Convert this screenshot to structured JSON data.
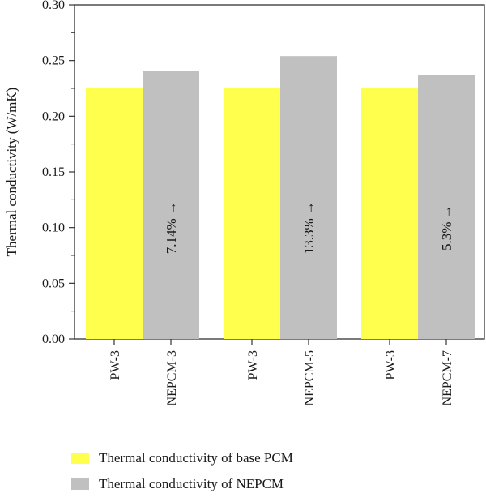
{
  "chart_data": {
    "type": "bar",
    "title": "",
    "xlabel": "",
    "ylabel": "Thermal conductivity (W/mK)",
    "ylim": [
      0,
      0.3
    ],
    "yticks": [
      "0.00",
      "0.05",
      "0.10",
      "0.15",
      "0.20",
      "0.25",
      "0.30"
    ],
    "grid": false,
    "legend_position": "bottom",
    "colors": {
      "base": "#ffff4d",
      "nepcm": "#c0c0c0",
      "axis": "#333333"
    },
    "groups": [
      {
        "bars": [
          {
            "category": "PW-3",
            "series": "Thermal conductivity of base PCM",
            "value": 0.225
          },
          {
            "category": "NEPCM-3",
            "series": "Thermal conductivity of NEPCM",
            "value": 0.241,
            "annotation": "7.14% →"
          }
        ]
      },
      {
        "bars": [
          {
            "category": "PW-3",
            "series": "Thermal conductivity of base PCM",
            "value": 0.225
          },
          {
            "category": "NEPCM-5",
            "series": "Thermal conductivity of NEPCM",
            "value": 0.254,
            "annotation": "13.3% →"
          }
        ]
      },
      {
        "bars": [
          {
            "category": "PW-3",
            "series": "Thermal conductivity of base PCM",
            "value": 0.225
          },
          {
            "category": "NEPCM-7",
            "series": "Thermal conductivity of NEPCM",
            "value": 0.237,
            "annotation": "5.3% →"
          }
        ]
      }
    ],
    "legend": [
      {
        "label": "Thermal conductivity of base PCM",
        "color": "#ffff4d"
      },
      {
        "label": "Thermal conductivity of NEPCM",
        "color": "#c0c0c0"
      }
    ]
  }
}
